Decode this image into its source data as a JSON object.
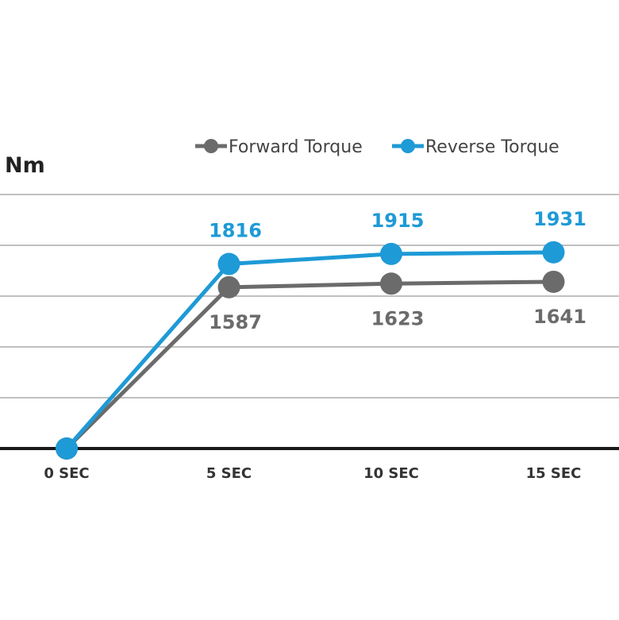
{
  "chart_data": {
    "type": "line",
    "ylabel": "Nm",
    "categories": [
      "0 SEC",
      "5 SEC",
      "10 SEC",
      "15 SEC"
    ],
    "series": [
      {
        "name": "Forward Torque",
        "color": "#6b6b6b",
        "values": [
          0,
          1587,
          1623,
          1641
        ],
        "labels": [
          "",
          "1587",
          "1623",
          "1641"
        ],
        "label_position": "below"
      },
      {
        "name": "Reverse Torque",
        "color": "#1e9ad6",
        "values": [
          0,
          1816,
          1915,
          1931
        ],
        "labels": [
          "",
          "1816",
          "1915",
          "1931"
        ],
        "label_position": "above"
      }
    ],
    "ylim": [
      0,
      2500
    ],
    "grid": true,
    "legend": "top-right"
  }
}
